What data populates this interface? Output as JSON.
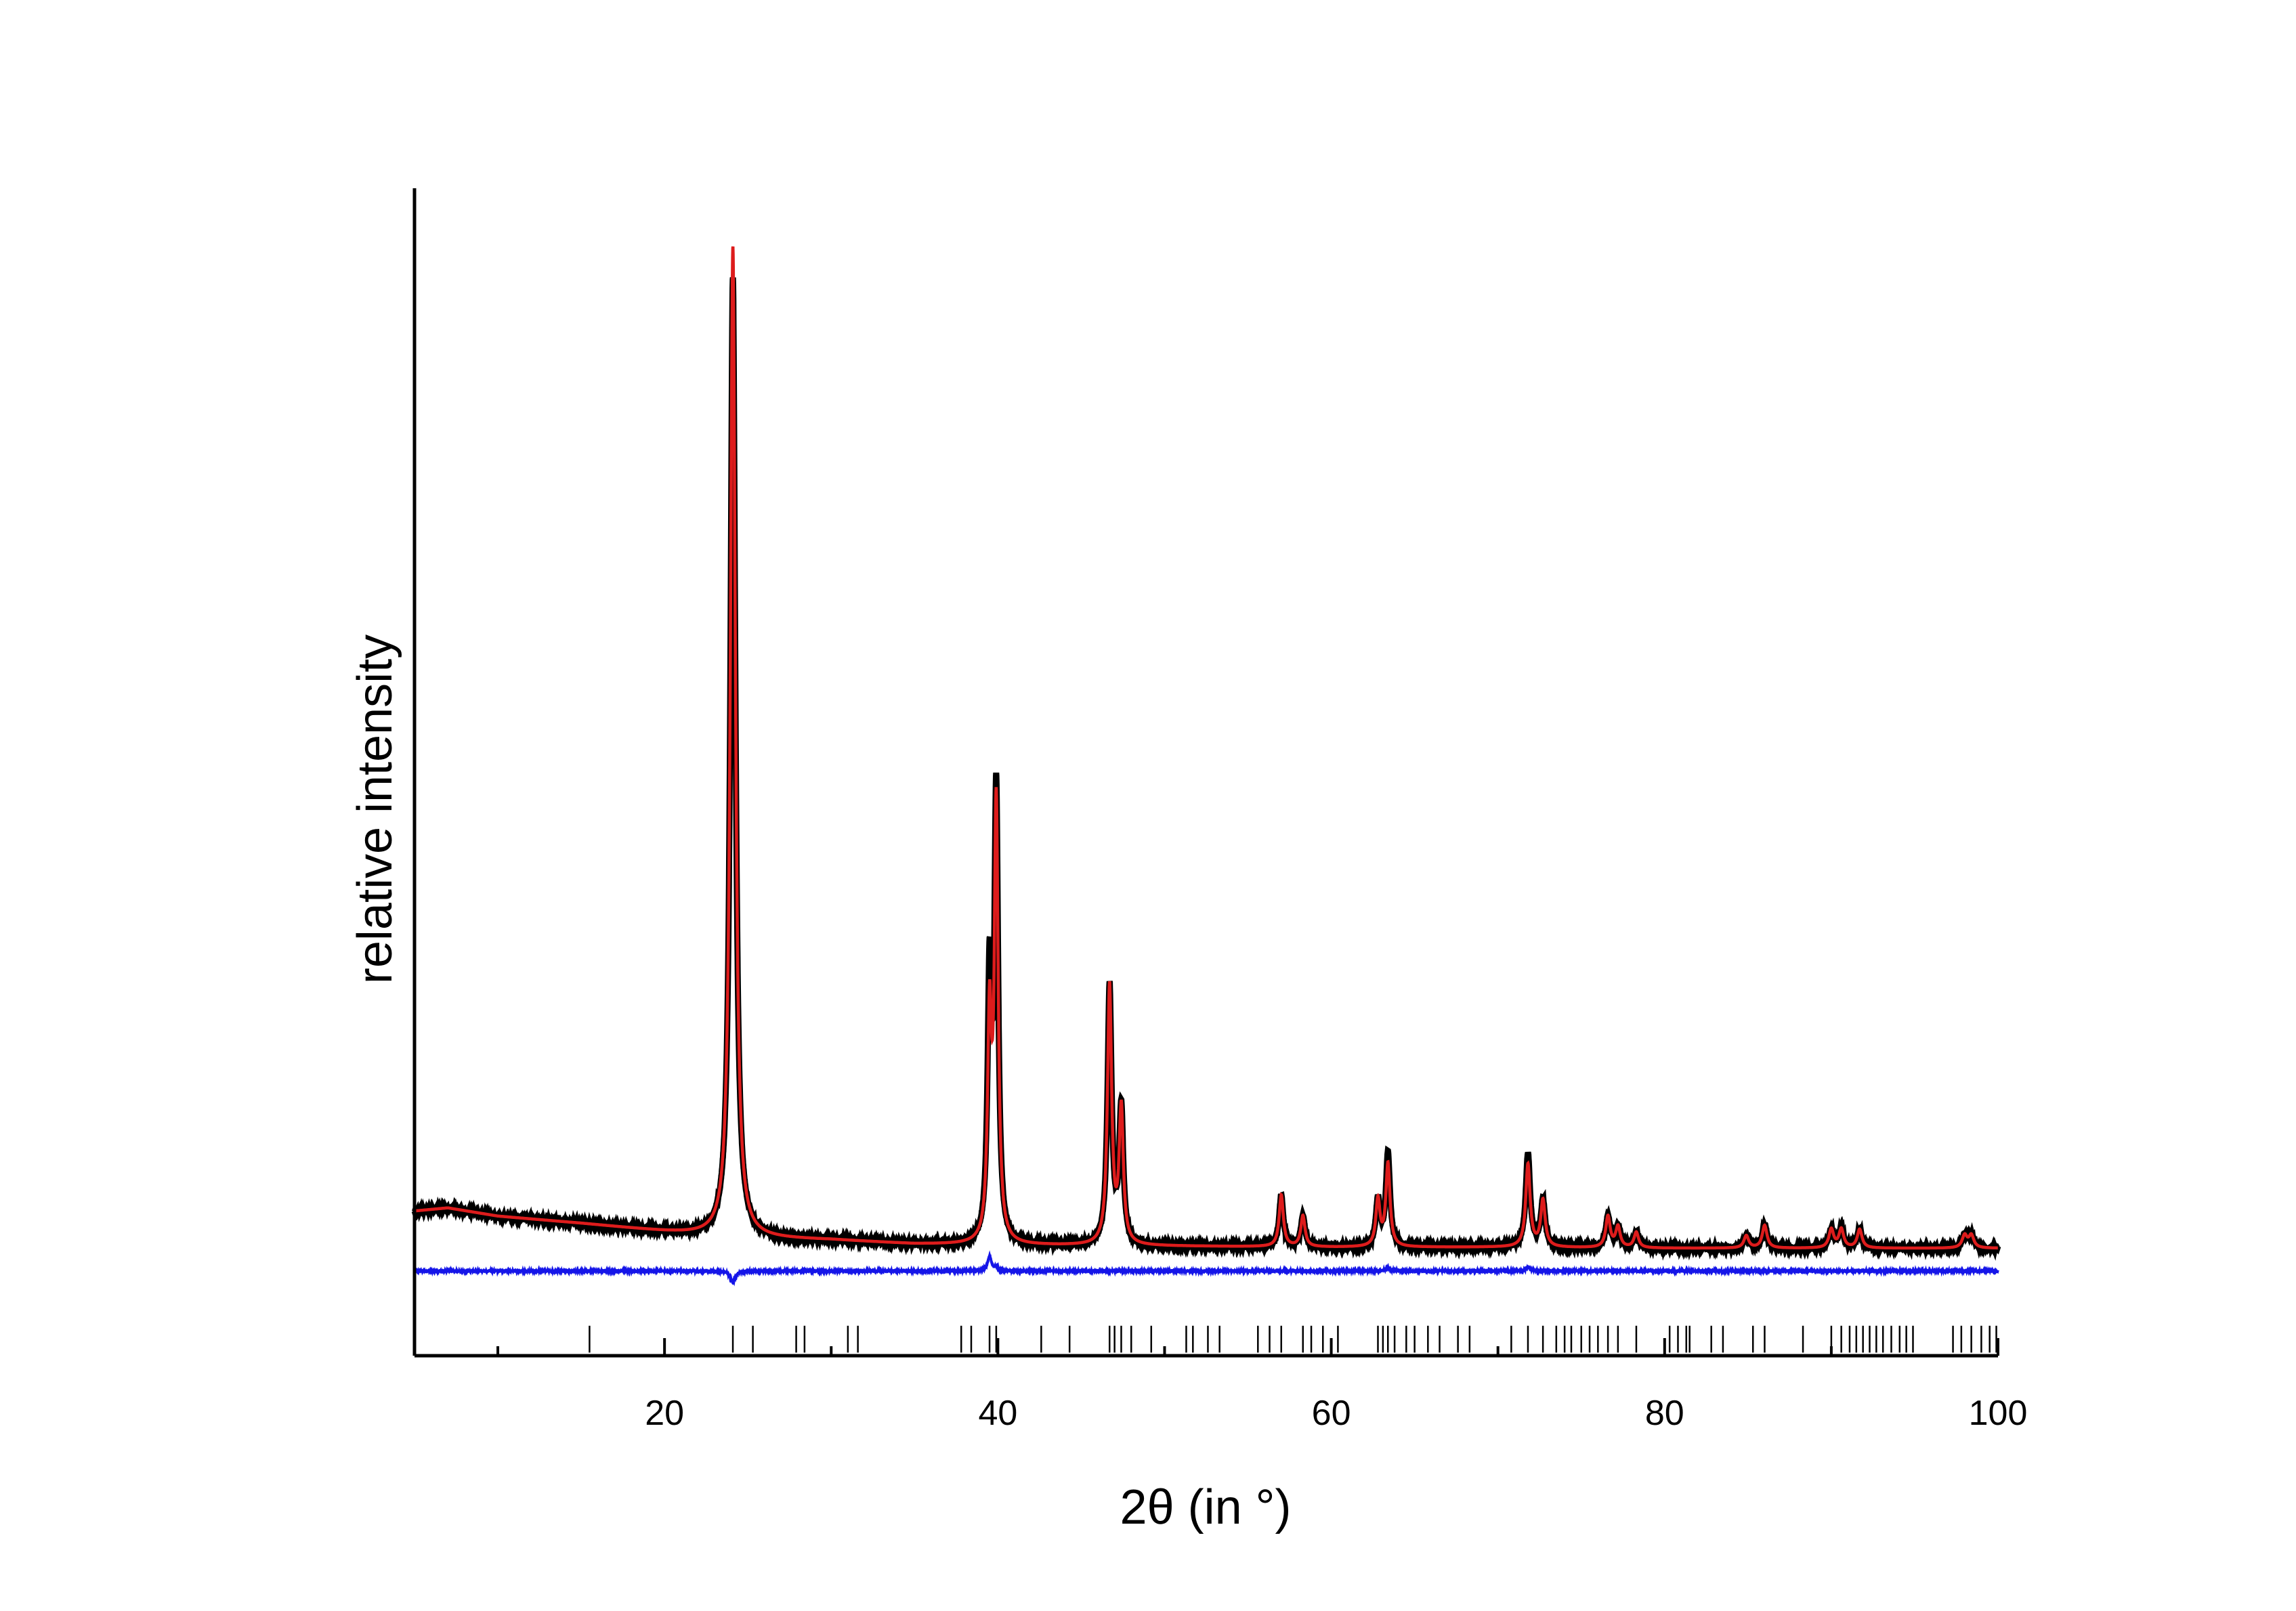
{
  "chart_data": {
    "type": "line",
    "xlabel": "2θ (in °)",
    "ylabel": "relative intensity",
    "xlim": [
      5,
      100
    ],
    "ylim": [
      -0.11,
      1.02
    ],
    "x_ticks_major": [
      20,
      40,
      60,
      80,
      100
    ],
    "x_ticks_minor": [
      10,
      30,
      50,
      70,
      90
    ],
    "colors": {
      "observed": "#000000",
      "calculated": "#dd1c1c",
      "difference": "#1515e8",
      "reflections": "#000000",
      "axes": "#000000"
    },
    "background": [
      [
        5,
        0.03
      ],
      [
        7,
        0.033
      ],
      [
        10,
        0.025
      ],
      [
        15,
        0.018
      ],
      [
        20,
        0.01
      ],
      [
        24,
        0.004
      ],
      [
        30,
        0.002
      ],
      [
        35,
        -0.002
      ],
      [
        40,
        -0.003
      ],
      [
        50,
        -0.004
      ],
      [
        60,
        -0.005
      ],
      [
        70,
        -0.005
      ],
      [
        80,
        -0.006
      ],
      [
        90,
        -0.006
      ],
      [
        100,
        -0.006
      ]
    ],
    "peaks": [
      {
        "x": 24.1,
        "y": 0.93,
        "w": 0.18
      },
      {
        "x": 39.5,
        "y": 0.25,
        "w": 0.14
      },
      {
        "x": 39.9,
        "y": 0.43,
        "w": 0.14
      },
      {
        "x": 46.7,
        "y": 0.25,
        "w": 0.15
      },
      {
        "x": 47.4,
        "y": 0.13,
        "w": 0.15
      },
      {
        "x": 57.0,
        "y": 0.05,
        "w": 0.15
      },
      {
        "x": 58.3,
        "y": 0.03,
        "w": 0.15
      },
      {
        "x": 62.8,
        "y": 0.045,
        "w": 0.15
      },
      {
        "x": 63.4,
        "y": 0.09,
        "w": 0.15
      },
      {
        "x": 71.8,
        "y": 0.09,
        "w": 0.16
      },
      {
        "x": 72.7,
        "y": 0.045,
        "w": 0.16
      },
      {
        "x": 76.6,
        "y": 0.03,
        "w": 0.16
      },
      {
        "x": 77.2,
        "y": 0.02,
        "w": 0.16
      },
      {
        "x": 78.3,
        "y": 0.015,
        "w": 0.16
      },
      {
        "x": 84.9,
        "y": 0.012,
        "w": 0.17
      },
      {
        "x": 86.0,
        "y": 0.022,
        "w": 0.17
      },
      {
        "x": 90.0,
        "y": 0.018,
        "w": 0.17
      },
      {
        "x": 90.6,
        "y": 0.018,
        "w": 0.17
      },
      {
        "x": 91.7,
        "y": 0.018,
        "w": 0.17
      },
      {
        "x": 98.0,
        "y": 0.012,
        "w": 0.18
      },
      {
        "x": 98.4,
        "y": 0.012,
        "w": 0.18
      }
    ],
    "calc_scale_overrides": [
      {
        "x": 24.1,
        "calc_y": 0.96
      },
      {
        "x": 39.5,
        "calc_y": 0.21
      },
      {
        "x": 39.9,
        "calc_y": 0.42
      },
      {
        "x": 63.4,
        "calc_y": 0.08
      },
      {
        "x": 71.8,
        "calc_y": 0.08
      }
    ],
    "series": [
      {
        "name": "observed",
        "kind": "profile"
      },
      {
        "name": "calculated",
        "kind": "profile"
      },
      {
        "name": "difference",
        "kind": "difference",
        "baseline": -0.028
      }
    ],
    "reflections": [
      15.5,
      24.1,
      25.3,
      27.9,
      28.4,
      31.0,
      31.6,
      37.8,
      38.4,
      39.5,
      39.9,
      42.6,
      44.3,
      46.7,
      47.0,
      47.4,
      48.0,
      49.2,
      51.3,
      51.7,
      52.6,
      53.3,
      55.6,
      56.3,
      57.0,
      58.3,
      58.8,
      59.5,
      60.4,
      62.8,
      63.1,
      63.4,
      63.8,
      64.5,
      65.0,
      65.8,
      66.5,
      67.6,
      68.3,
      70.8,
      71.8,
      72.7,
      73.5,
      74.0,
      74.4,
      75.0,
      75.5,
      76.0,
      76.6,
      77.2,
      78.3,
      80.3,
      80.8,
      81.3,
      81.5,
      82.8,
      83.5,
      85.3,
      86.0,
      88.3,
      90.0,
      90.6,
      91.1,
      91.5,
      91.9,
      92.3,
      92.7,
      93.1,
      93.6,
      94.1,
      94.5,
      94.9,
      97.3,
      97.8,
      98.4,
      99.0,
      99.5,
      99.9
    ]
  }
}
